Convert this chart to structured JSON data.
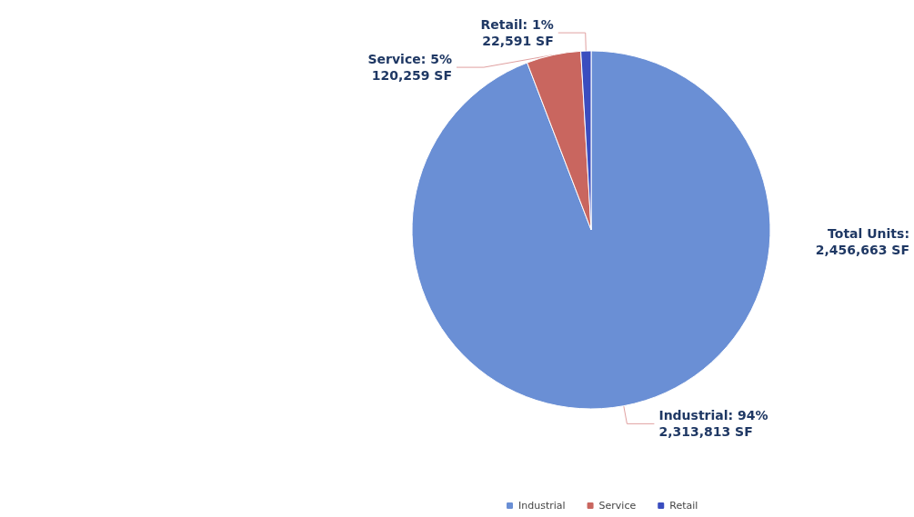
{
  "chart_data": {
    "type": "pie",
    "categories": [
      "Industrial",
      "Service",
      "Retail"
    ],
    "values": [
      2313813,
      120259,
      22591
    ],
    "colors": [
      "#6a8fd5",
      "#c9665f",
      "#3a4dbf"
    ],
    "value_labels": [
      "Industrial: 94%\n2,313,813 SF",
      "Service: 5%\n120,259 SF",
      "Retail: 1%\n22,591 SF"
    ],
    "annotations": [
      "Total Units:\n2,456,663 SF"
    ],
    "legend": "bottom"
  }
}
